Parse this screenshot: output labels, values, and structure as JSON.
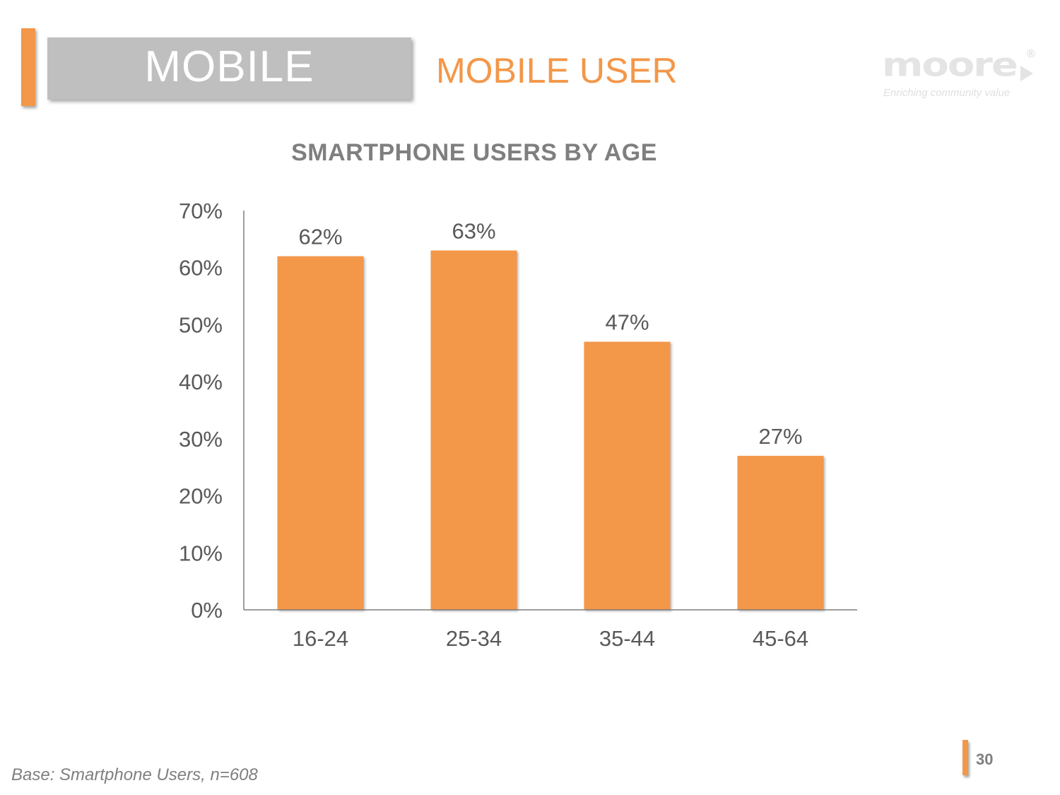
{
  "header": {
    "section_label": "MOBILE",
    "page_title": "MOBILE USER"
  },
  "logo": {
    "wordmark": "moore",
    "tagline": "Enriching community value",
    "registered": "®"
  },
  "chart_data": {
    "type": "bar",
    "title": "SMARTPHONE USERS BY AGE",
    "categories": [
      "16-24",
      "25-34",
      "35-44",
      "45-64"
    ],
    "values": [
      62,
      63,
      47,
      27
    ],
    "value_labels": [
      "62%",
      "63%",
      "47%",
      "27%"
    ],
    "unit": "%",
    "ylim": [
      0,
      70
    ],
    "y_ticks": [
      0,
      10,
      20,
      30,
      40,
      50,
      60,
      70
    ],
    "y_tick_labels": [
      "0%",
      "10%",
      "20%",
      "30%",
      "40%",
      "50%",
      "60%",
      "70%"
    ],
    "xlabel": "",
    "ylabel": "",
    "grid": false,
    "bar_color": "#f39749",
    "axis_color": "#7f7f7f",
    "label_color": "#595959"
  },
  "footer": {
    "base_note": "Base: Smartphone Users, n=608",
    "page_number": "30"
  },
  "colors": {
    "accent": "#f39749",
    "header_box": "#bfbfbf",
    "text_gray": "#7f7f7f"
  }
}
